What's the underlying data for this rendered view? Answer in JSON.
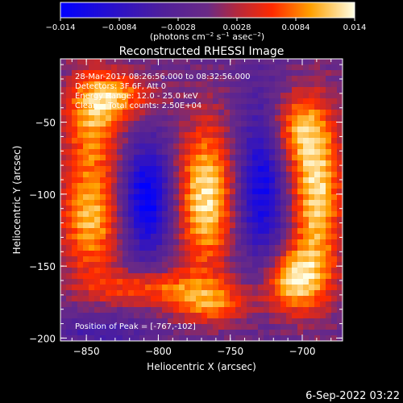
{
  "chart_data": {
    "type": "heatmap",
    "title": "Reconstructed RHESSI Image",
    "colorbar": {
      "ticks": [
        "-0.014",
        "-0.0084",
        "-0.0028",
        "0.0028",
        "0.0084",
        "0.014"
      ],
      "range": [
        -0.014,
        0.014
      ],
      "unit_parts": [
        "(photons cm",
        "-2",
        " s",
        "-1",
        " asec",
        "-2",
        ")"
      ]
    },
    "xlabel": "Heliocentric X (arcsec)",
    "ylabel": "Heliocentric Y (arcsec)",
    "xlim": [
      -868,
      -672
    ],
    "ylim": [
      -202,
      -6
    ],
    "xticks": [
      {
        "value": -850,
        "label": "−850"
      },
      {
        "value": -800,
        "label": "−800"
      },
      {
        "value": -750,
        "label": "−750"
      },
      {
        "value": -700,
        "label": "−700"
      }
    ],
    "yticks": [
      {
        "value": -50,
        "label": "−50"
      },
      {
        "value": -100,
        "label": "−100"
      },
      {
        "value": -150,
        "label": "−150"
      },
      {
        "value": -200,
        "label": "−200"
      }
    ],
    "info_lines": [
      "28-Mar-2017 08:26:56.000 to 08:32:56.000",
      "Detectors: 3F 6F, Att 0",
      "Energy Range: 12.0 - 25.0 keV",
      "Clean    Total counts: 2.50E+04"
    ],
    "peak_label": "Position of Peak = [-767,-102]",
    "peak": [
      -767,
      -102
    ],
    "blobs": [
      {
        "x": -767,
        "y": -102,
        "sx": 14,
        "sy": 36,
        "amp": 1.0
      },
      {
        "x": -847,
        "y": -115,
        "sx": 15,
        "sy": 30,
        "amp": 0.85
      },
      {
        "x": -845,
        "y": -45,
        "sx": 15,
        "sy": 24,
        "amp": 0.7
      },
      {
        "x": -826,
        "y": -32,
        "sx": 18,
        "sy": 11,
        "amp": 0.55
      },
      {
        "x": -690,
        "y": -100,
        "sx": 13,
        "sy": 40,
        "amp": 0.95
      },
      {
        "x": -705,
        "y": -55,
        "sx": 14,
        "sy": 18,
        "amp": 0.6
      },
      {
        "x": -706,
        "y": -160,
        "sx": 16,
        "sy": 16,
        "amp": 0.9
      },
      {
        "x": -800,
        "y": -165,
        "sx": 32,
        "sy": 9,
        "amp": 0.6
      },
      {
        "x": -762,
        "y": -178,
        "sx": 20,
        "sy": 9,
        "amp": 0.55
      },
      {
        "x": -808,
        "y": -103,
        "sx": 12,
        "sy": 28,
        "amp": -0.95
      },
      {
        "x": -728,
        "y": -95,
        "sx": 12,
        "sy": 42,
        "amp": -0.8
      },
      {
        "x": -840,
        "y": -195,
        "sx": 22,
        "sy": 8,
        "amp": -0.35
      }
    ]
  },
  "footer": {
    "date": "6-Sep-2022 03:22"
  }
}
